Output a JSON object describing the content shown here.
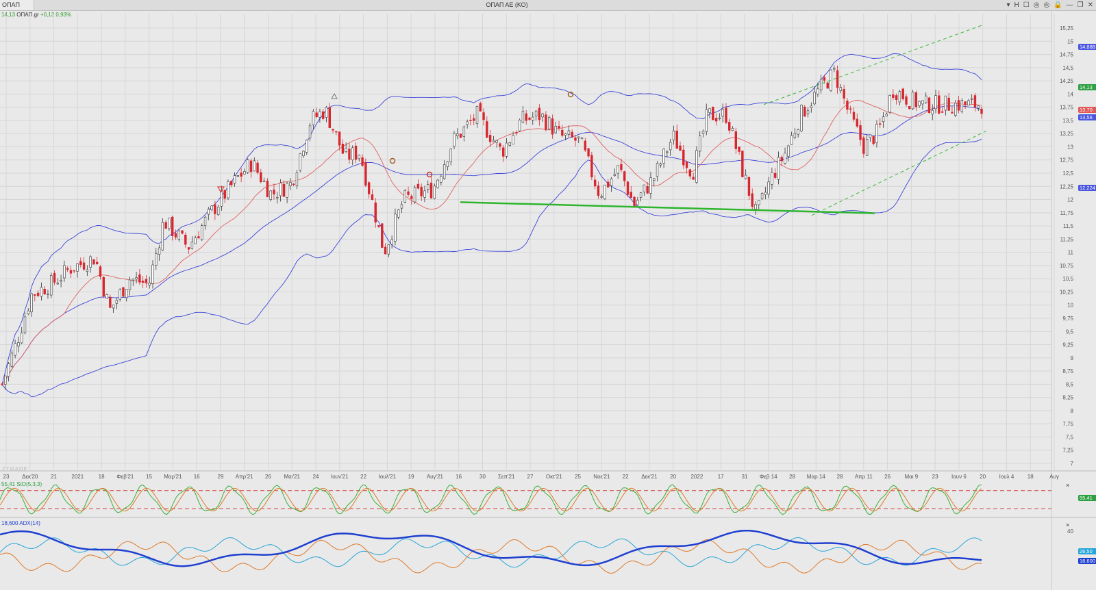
{
  "window": {
    "symbol": "ΟΠΑΠ",
    "title": "ΟΠΑΠ ΑΕ (ΚΟ)",
    "icons": [
      "chevron-down-icon",
      "h-icon",
      "square-icon",
      "eye-icon",
      "eye2-icon",
      "lock-icon",
      "minimize-icon",
      "restore-icon",
      "close-icon"
    ],
    "icon_glyphs": [
      "▾",
      "H",
      "☐",
      "◎",
      "◎",
      "🔒",
      "—",
      "❐",
      "✕"
    ]
  },
  "quote": {
    "price": "14,13",
    "symbol": "ΟΠΑΠ.gr",
    "change": "+0,13 0,93%"
  },
  "watermark": "ZTRADE",
  "price_axis": {
    "ticks": [
      "15,25",
      "15",
      "14,75",
      "14,5",
      "14,25",
      "14",
      "13,75",
      "13,5",
      "13,25",
      "13",
      "12,75",
      "12,5",
      "12,25",
      "12",
      "11,75",
      "11,5",
      "11,25",
      "11",
      "10,75",
      "10,5",
      "10,25",
      "10",
      "9,75",
      "9,5",
      "9,25",
      "9",
      "8,75",
      "8,5",
      "8,25",
      "8",
      "7,75",
      "7,5",
      "7,25",
      "7"
    ],
    "range": [
      7,
      15.25
    ]
  },
  "time_axis": {
    "labels": [
      "23",
      "Δεκ'20",
      "21",
      "2021",
      "18",
      "Φεβ'21",
      "15",
      "Μαρ'21",
      "16",
      "29",
      "Απρ'21",
      "26",
      "Μαι'21",
      "24",
      "Ιουν'21",
      "22",
      "Ιουλ'21",
      "19",
      "Αυγ'21",
      "16",
      "30",
      "Σεπ'21",
      "27",
      "Οκτ'21",
      "25",
      "Νοε'21",
      "22",
      "Δεκ'21",
      "20",
      "2022",
      "17",
      "31",
      "Φεβ 14",
      "28",
      "Μαρ 14",
      "28",
      "Απρ 11",
      "26",
      "Μαι 9",
      "23",
      "Ιουν 6",
      "20",
      "Ιουλ 4",
      "18",
      "Αυγ"
    ]
  },
  "price_tags": [
    {
      "label": "14,888",
      "value": 14.888,
      "color": "#4a55e0"
    },
    {
      "label": "14,13",
      "value": 14.13,
      "color": "#2ea043"
    },
    {
      "label": "13,70",
      "value": 13.7,
      "color": "#e05a5a"
    },
    {
      "label": "13,56",
      "value": 13.56,
      "color": "#4a55e0"
    },
    {
      "label": "12,224",
      "value": 12.224,
      "color": "#4a55e0"
    }
  ],
  "stoch": {
    "title": "55,41 StO(5,3,3)",
    "tag": "55,41",
    "tag_color": "#2ea043",
    "upper": 80,
    "lower": 20
  },
  "adx": {
    "title": "18,600 ADX(14)",
    "axis_label": "40",
    "tags": [
      {
        "label": "26,50",
        "color": "#29a6d8"
      },
      {
        "label": "18,600",
        "color": "#1f3fd0"
      }
    ]
  },
  "close_glyph": "×",
  "colors": {
    "up": "#333333",
    "down": "#d7262e",
    "bb": "#3b44d8",
    "ma": "#e06060",
    "support": "#2db52d",
    "channel": "#38b838"
  }
}
